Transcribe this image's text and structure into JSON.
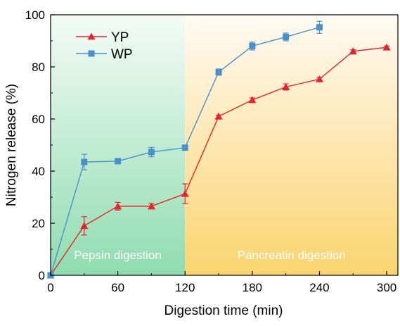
{
  "chart_data": {
    "type": "line",
    "title": "",
    "xlabel": "Digestion time (min)",
    "ylabel": "Nitrogen release (%)",
    "xlim": [
      0,
      310
    ],
    "ylim": [
      0,
      100
    ],
    "xticks": [
      0,
      60,
      120,
      180,
      240,
      300
    ],
    "yticks": [
      0,
      20,
      40,
      60,
      80,
      100
    ],
    "grid": false,
    "legend_position": "top-left",
    "regions": [
      {
        "label": "Pepsin digestion",
        "x_range": [
          0,
          120
        ],
        "color_top": "#f4fbf7",
        "color_bottom": "#8fdcb0"
      },
      {
        "label": "Pancreatin digestion",
        "x_range": [
          120,
          310
        ],
        "color_top": "#fffaf3",
        "color_bottom": "#fbd46f"
      }
    ],
    "series": [
      {
        "name": "YP",
        "color": "#e8232b",
        "marker": "triangle",
        "x": [
          0,
          30,
          60,
          90,
          120,
          150,
          180,
          210,
          240,
          270,
          300
        ],
        "y": [
          0,
          19.0,
          26.5,
          26.5,
          31.3,
          61.0,
          67.3,
          72.3,
          75.3,
          86.0,
          87.5
        ],
        "error": [
          0,
          3.5,
          1.5,
          1.0,
          3.8,
          0.5,
          0.8,
          1.2,
          0.6,
          0.6,
          0.5
        ]
      },
      {
        "name": "WP",
        "color": "#4a90c9",
        "marker": "square",
        "x": [
          0,
          30,
          60,
          90,
          120,
          150,
          180,
          210,
          240
        ],
        "y": [
          0,
          43.5,
          43.8,
          47.3,
          49.0,
          78.0,
          88.0,
          91.5,
          95.2
        ],
        "error": [
          0,
          3.0,
          0.6,
          1.8,
          0.8,
          1.2,
          1.5,
          1.5,
          2.3
        ]
      }
    ]
  }
}
